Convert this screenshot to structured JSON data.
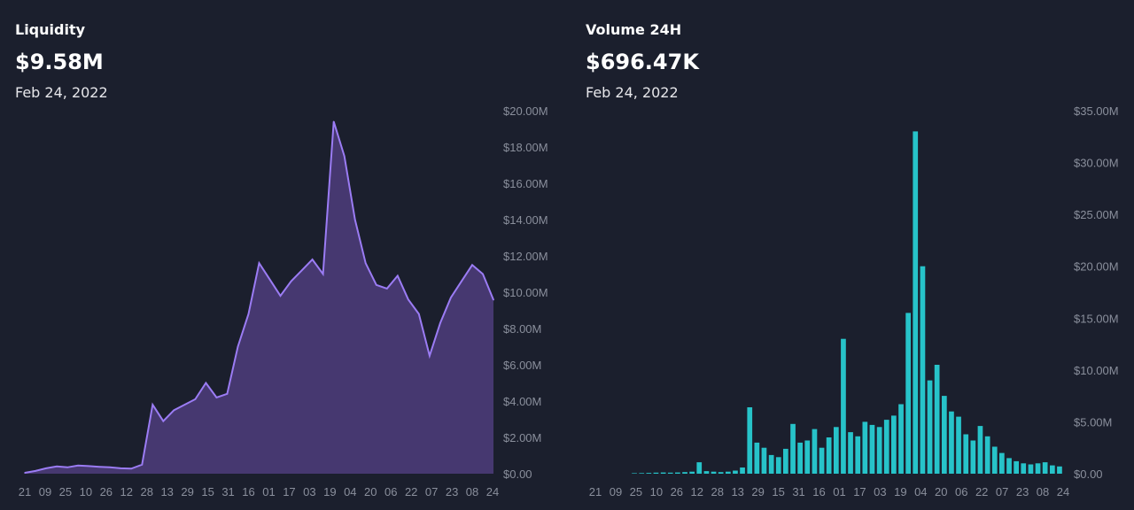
{
  "colors": {
    "background": "#1b1f2d",
    "liquidity_line": "#9b7cf4",
    "liquidity_fill": "#463870",
    "volume_bar": "#27c3c9"
  },
  "liquidity": {
    "label": "Liquidity",
    "value": "$9.58M",
    "date": "Feb 24, 2022"
  },
  "volume": {
    "label": "Volume 24H",
    "value": "$696.47K",
    "date": "Feb 24, 2022"
  },
  "chart_data": [
    {
      "type": "area",
      "title": "Liquidity",
      "xlabel": "",
      "ylabel": "",
      "ylim": [
        0,
        20000000
      ],
      "y_tick_labels": [
        "$0.00",
        "$2.00M",
        "$4.00M",
        "$6.00M",
        "$8.00M",
        "$10.00M",
        "$12.00M",
        "$14.00M",
        "$16.00M",
        "$18.00M",
        "$20.00M"
      ],
      "x_tick_labels": [
        "21",
        "09",
        "25",
        "10",
        "26",
        "12",
        "28",
        "13",
        "29",
        "15",
        "31",
        "16",
        "01",
        "17",
        "03",
        "19",
        "04",
        "20",
        "06",
        "22",
        "07",
        "23",
        "08",
        "24"
      ],
      "grid": false,
      "series": [
        {
          "values": [
            0.05,
            0.15,
            0.3,
            0.4,
            0.35,
            0.45,
            0.42,
            0.38,
            0.35,
            0.3,
            0.28,
            0.5,
            3.8,
            2.9,
            3.5,
            3.8,
            4.1,
            5.0,
            4.2,
            4.4,
            7.0,
            8.8,
            11.6,
            10.7,
            9.8,
            10.6,
            11.2,
            11.8,
            11.0,
            19.4,
            17.5,
            14.0,
            11.6,
            10.4,
            10.2,
            10.9,
            9.6,
            8.8,
            6.5,
            8.3,
            9.7,
            10.6,
            11.5,
            11.0,
            9.58
          ]
        }
      ]
    },
    {
      "type": "bar",
      "title": "Volume 24H",
      "xlabel": "",
      "ylabel": "",
      "ylim": [
        0,
        35000000
      ],
      "y_tick_labels": [
        "$0.00",
        "$5.00M",
        "$10.00M",
        "$15.00M",
        "$20.00M",
        "$25.00M",
        "$30.00M",
        "$35.00M"
      ],
      "x_tick_labels": [
        "21",
        "09",
        "25",
        "10",
        "26",
        "12",
        "28",
        "13",
        "29",
        "15",
        "31",
        "16",
        "01",
        "17",
        "03",
        "19",
        "04",
        "20",
        "06",
        "22",
        "07",
        "23",
        "08",
        "24"
      ],
      "grid": false,
      "series": [
        {
          "values": [
            0.05,
            0.06,
            0.08,
            0.1,
            0.12,
            0.1,
            0.12,
            0.15,
            0.2,
            1.1,
            0.25,
            0.2,
            0.15,
            0.2,
            0.3,
            0.6,
            6.4,
            3.0,
            2.5,
            1.8,
            1.6,
            2.4,
            4.8,
            3.0,
            3.2,
            4.3,
            2.5,
            3.5,
            4.5,
            13.0,
            4.0,
            3.6,
            5.0,
            4.7,
            4.5,
            5.2,
            5.6,
            6.7,
            15.5,
            33.0,
            20.0,
            9.0,
            10.5,
            7.5,
            6.0,
            5.5,
            3.8,
            3.2,
            4.6,
            3.6,
            2.6,
            2.0,
            1.5,
            1.2,
            1.0,
            0.9,
            1.0,
            1.1,
            0.8,
            0.7
          ]
        }
      ]
    }
  ]
}
